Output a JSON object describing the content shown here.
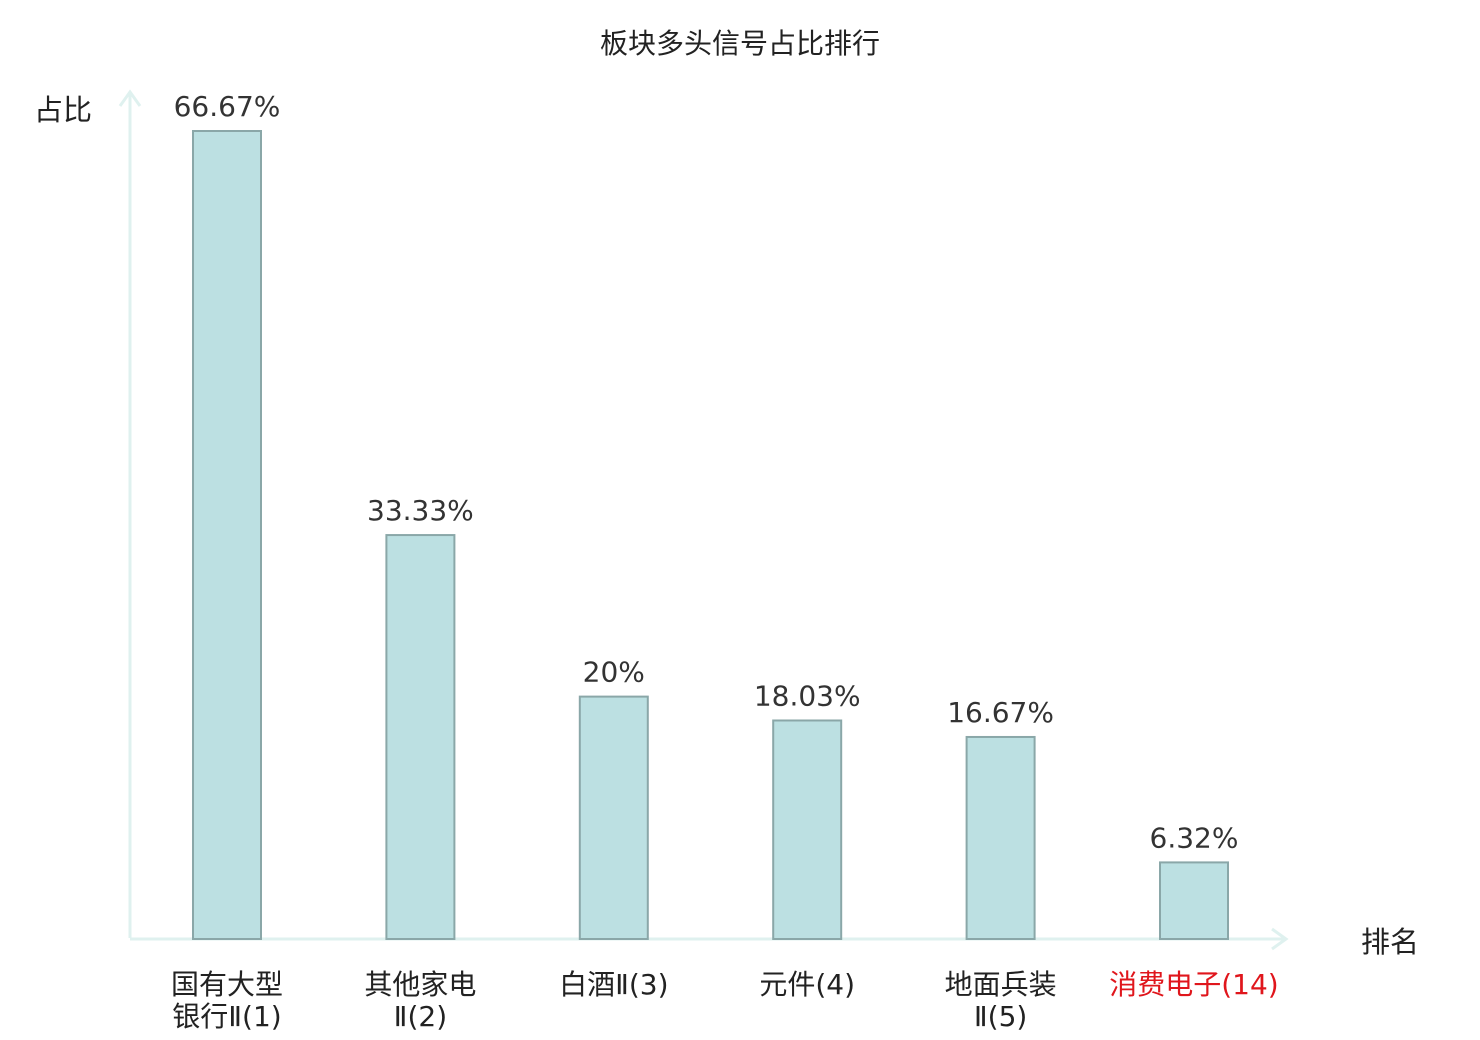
{
  "chart_data": {
    "type": "bar",
    "title": "板块多头信号占比排行",
    "ylabel": "占比",
    "xlabel": "排名",
    "ylim": [
      0,
      70
    ],
    "grid": false,
    "legend": "none",
    "categories": [
      {
        "lines": [
          "国有大型",
          "银行Ⅱ(1)"
        ],
        "highlight": false
      },
      {
        "lines": [
          "其他家电",
          "Ⅱ(2)"
        ],
        "highlight": false
      },
      {
        "lines": [
          "白酒Ⅱ(3)"
        ],
        "highlight": false
      },
      {
        "lines": [
          "元件(4)"
        ],
        "highlight": false
      },
      {
        "lines": [
          "地面兵装",
          "Ⅱ(5)"
        ],
        "highlight": false
      },
      {
        "lines": [
          "消费电子(14)"
        ],
        "highlight": true
      }
    ],
    "values": [
      66.67,
      33.33,
      20,
      18.03,
      16.67,
      6.32
    ],
    "value_labels": [
      "66.67%",
      "33.33%",
      "20%",
      "18.03%",
      "16.67%",
      "6.32%"
    ]
  },
  "colors": {
    "bar_fill": "#bce0e2",
    "bar_stroke": "#8aa7a8",
    "axis": "#dff1ef",
    "text": "#222222",
    "highlight": "#e0161c"
  }
}
